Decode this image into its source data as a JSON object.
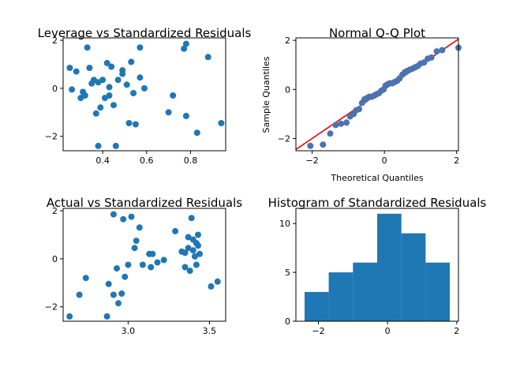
{
  "figure": {
    "background": "#ffffff"
  },
  "chart_data": [
    {
      "type": "scatter",
      "title": "Leverage vs Standardized Residuals",
      "xlabel": "",
      "ylabel": "",
      "xlim": [
        0.22,
        0.96
      ],
      "ylim": [
        -2.6,
        2.1
      ],
      "xticks": [
        0.4,
        0.6,
        0.8
      ],
      "xtick_labels": [
        "0.4",
        "0.6",
        "0.8"
      ],
      "yticks": [
        -2,
        0,
        2
      ],
      "ytick_labels": [
        "−2",
        "0",
        "2"
      ],
      "marker_color": "#1f77b4",
      "points": [
        [
          0.25,
          0.85
        ],
        [
          0.26,
          -0.05
        ],
        [
          0.28,
          0.7
        ],
        [
          0.3,
          -0.4
        ],
        [
          0.31,
          -0.15
        ],
        [
          0.32,
          -0.3
        ],
        [
          0.33,
          1.7
        ],
        [
          0.34,
          0.85
        ],
        [
          0.35,
          0.2
        ],
        [
          0.36,
          0.35
        ],
        [
          0.37,
          -1.05
        ],
        [
          0.38,
          0.25
        ],
        [
          0.38,
          -2.4
        ],
        [
          0.39,
          -0.8
        ],
        [
          0.4,
          0.35
        ],
        [
          0.41,
          -0.4
        ],
        [
          0.42,
          1.05
        ],
        [
          0.43,
          0.05
        ],
        [
          0.43,
          -0.3
        ],
        [
          0.44,
          0.9
        ],
        [
          0.45,
          -0.7
        ],
        [
          0.46,
          -2.4
        ],
        [
          0.47,
          0.35
        ],
        [
          0.49,
          0.6
        ],
        [
          0.49,
          0.75
        ],
        [
          0.51,
          0.15
        ],
        [
          0.52,
          -1.45
        ],
        [
          0.53,
          1.1
        ],
        [
          0.54,
          -0.2
        ],
        [
          0.55,
          -1.5
        ],
        [
          0.57,
          0.45
        ],
        [
          0.57,
          1.7
        ],
        [
          0.59,
          0.0
        ],
        [
          0.7,
          -1.0
        ],
        [
          0.72,
          -0.3
        ],
        [
          0.77,
          1.65
        ],
        [
          0.78,
          1.85
        ],
        [
          0.78,
          -1.15
        ],
        [
          0.83,
          -1.85
        ],
        [
          0.88,
          1.3
        ],
        [
          0.94,
          -1.45
        ]
      ]
    },
    {
      "type": "scatter",
      "title": "Normal Q-Q Plot",
      "xlabel": "Theoretical Quantiles",
      "ylabel": "Sample Quantiles",
      "xlim": [
        -2.45,
        2.05
      ],
      "ylim": [
        -2.5,
        2.1
      ],
      "xticks": [
        -2,
        0,
        2
      ],
      "xtick_labels": [
        "−2",
        "0",
        "2"
      ],
      "yticks": [
        -2,
        0,
        2
      ],
      "ytick_labels": [
        "−2",
        "0",
        "2"
      ],
      "marker_color": "#4c72b0",
      "reference_line": {
        "slope": 1,
        "intercept": 0,
        "color": "#e31a1c"
      },
      "points": [
        [
          -2.05,
          -2.3
        ],
        [
          -1.7,
          -2.25
        ],
        [
          -1.5,
          -1.8
        ],
        [
          -1.35,
          -1.45
        ],
        [
          -1.2,
          -1.4
        ],
        [
          -1.05,
          -1.35
        ],
        [
          -0.95,
          -1.1
        ],
        [
          -0.85,
          -1.0
        ],
        [
          -0.78,
          -0.85
        ],
        [
          -0.7,
          -0.8
        ],
        [
          -0.62,
          -0.55
        ],
        [
          -0.55,
          -0.4
        ],
        [
          -0.48,
          -0.35
        ],
        [
          -0.42,
          -0.3
        ],
        [
          -0.35,
          -0.3
        ],
        [
          -0.28,
          -0.25
        ],
        [
          -0.22,
          -0.2
        ],
        [
          -0.15,
          -0.15
        ],
        [
          -0.08,
          -0.05
        ],
        [
          -0.02,
          0.0
        ],
        [
          0.03,
          0.15
        ],
        [
          0.08,
          0.2
        ],
        [
          0.15,
          0.25
        ],
        [
          0.22,
          0.25
        ],
        [
          0.28,
          0.3
        ],
        [
          0.35,
          0.35
        ],
        [
          0.42,
          0.45
        ],
        [
          0.5,
          0.6
        ],
        [
          0.57,
          0.7
        ],
        [
          0.63,
          0.75
        ],
        [
          0.7,
          0.8
        ],
        [
          0.78,
          0.85
        ],
        [
          0.85,
          0.9
        ],
        [
          0.92,
          0.95
        ],
        [
          1.0,
          1.05
        ],
        [
          1.1,
          1.1
        ],
        [
          1.2,
          1.25
        ],
        [
          1.3,
          1.3
        ],
        [
          1.45,
          1.55
        ],
        [
          1.6,
          1.6
        ],
        [
          2.05,
          1.7
        ]
      ]
    },
    {
      "type": "scatter",
      "title": "Actual vs Standardized Residuals",
      "xlabel": "",
      "ylabel": "",
      "xlim": [
        2.6,
        3.6
      ],
      "ylim": [
        -2.6,
        2.1
      ],
      "xticks": [
        3.0,
        3.5
      ],
      "xtick_labels": [
        "3.0",
        "3.5"
      ],
      "yticks": [
        -2,
        0,
        2
      ],
      "ytick_labels": [
        "−2",
        "0",
        "2"
      ],
      "marker_color": "#1f77b4",
      "points": [
        [
          2.64,
          -2.4
        ],
        [
          2.7,
          -1.5
        ],
        [
          2.74,
          -0.8
        ],
        [
          2.87,
          -2.4
        ],
        [
          2.88,
          -1.05
        ],
        [
          2.91,
          1.85
        ],
        [
          2.91,
          -1.5
        ],
        [
          2.93,
          -0.4
        ],
        [
          2.94,
          -1.85
        ],
        [
          2.96,
          -1.45
        ],
        [
          2.97,
          1.65
        ],
        [
          2.98,
          -0.75
        ],
        [
          3.0,
          -0.25
        ],
        [
          3.02,
          1.75
        ],
        [
          3.04,
          0.45
        ],
        [
          3.05,
          0.75
        ],
        [
          3.07,
          1.3
        ],
        [
          3.09,
          -0.25
        ],
        [
          3.13,
          0.2
        ],
        [
          3.14,
          -0.35
        ],
        [
          3.15,
          0.2
        ],
        [
          3.18,
          -0.15
        ],
        [
          3.22,
          -0.05
        ],
        [
          3.29,
          1.15
        ],
        [
          3.33,
          0.3
        ],
        [
          3.35,
          0.25
        ],
        [
          3.35,
          -0.35
        ],
        [
          3.37,
          0.45
        ],
        [
          3.37,
          0.9
        ],
        [
          3.38,
          -0.5
        ],
        [
          3.39,
          1.7
        ],
        [
          3.4,
          0.35
        ],
        [
          3.4,
          0.8
        ],
        [
          3.41,
          0.1
        ],
        [
          3.42,
          -0.25
        ],
        [
          3.42,
          0.65
        ],
        [
          3.43,
          1.0
        ],
        [
          3.43,
          0.55
        ],
        [
          3.44,
          0.2
        ],
        [
          3.51,
          -1.15
        ],
        [
          3.55,
          -0.95
        ]
      ]
    },
    {
      "type": "bar",
      "subtype": "histogram",
      "title": "Histogram of Standardized Residuals",
      "xlabel": "",
      "ylabel": "",
      "xlim": [
        -2.65,
        2.05
      ],
      "ylim": [
        0,
        11.55
      ],
      "xticks": [
        -2,
        0,
        2
      ],
      "xtick_labels": [
        "−2",
        "0",
        "2"
      ],
      "yticks": [
        0,
        5,
        10
      ],
      "ytick_labels": [
        "0",
        "5",
        "10"
      ],
      "bar_color": "#1f77b4",
      "bin_edges": [
        -2.4,
        -1.7,
        -1.0,
        -0.3,
        0.4,
        1.1,
        1.8
      ],
      "values": [
        3,
        5,
        6,
        11,
        9,
        6
      ]
    }
  ]
}
